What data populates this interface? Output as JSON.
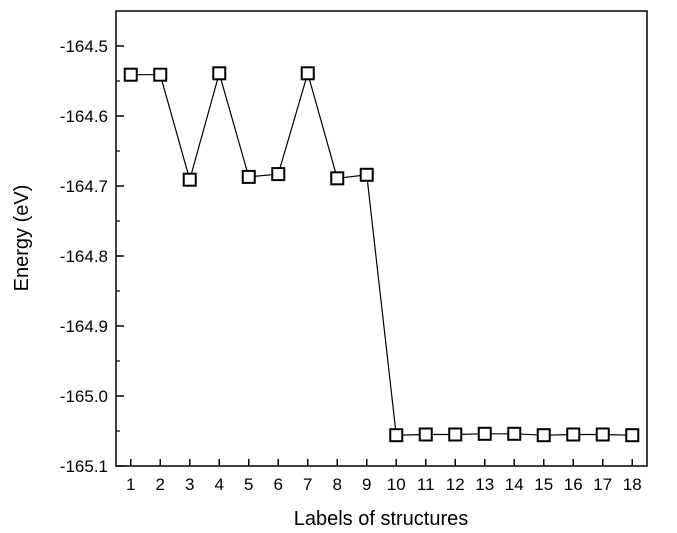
{
  "chart_data": {
    "type": "line",
    "title": "",
    "xlabel": "Labels of structures",
    "ylabel": "Energy (eV)",
    "x": [
      1,
      2,
      3,
      4,
      5,
      6,
      7,
      8,
      9,
      10,
      11,
      12,
      13,
      14,
      15,
      16,
      17,
      18
    ],
    "xticks": [
      "1",
      "2",
      "3",
      "4",
      "5",
      "6",
      "7",
      "8",
      "9",
      "10",
      "11",
      "12",
      "13",
      "14",
      "15",
      "16",
      "17",
      "18"
    ],
    "xlim": [
      0.5,
      18.5
    ],
    "ylim": [
      -165.1,
      -164.45
    ],
    "yticks": [
      "-164.5",
      "-164.6",
      "-164.7",
      "-164.8",
      "-164.9",
      "-165.0",
      "-165.1"
    ],
    "ytick_values": [
      -164.5,
      -164.6,
      -164.7,
      -164.8,
      -164.9,
      -165.0,
      -165.1
    ],
    "series": [
      {
        "values": [
          -164.541,
          -164.541,
          -164.691,
          -164.539,
          -164.687,
          -164.683,
          -164.539,
          -164.689,
          -164.684,
          -165.056,
          -165.055,
          -165.055,
          -165.054,
          -165.054,
          -165.056,
          -165.055,
          -165.055,
          -165.056
        ],
        "marker": "open-square",
        "color": "#000000"
      }
    ],
    "grid": false,
    "legend": "none"
  }
}
